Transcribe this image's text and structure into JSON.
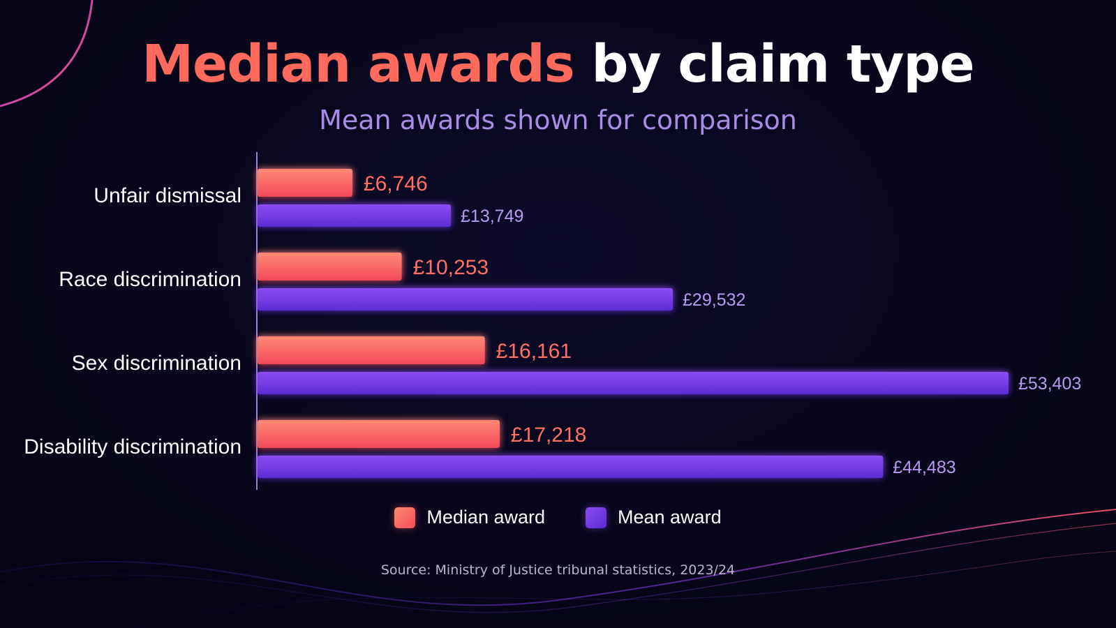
{
  "title": {
    "accent": "Median awards",
    "rest": "by claim type"
  },
  "subtitle": "Mean awards shown for comparison",
  "chart_data": {
    "type": "bar",
    "orientation": "horizontal",
    "categories": [
      "Unfair dismissal",
      "Race discrimination",
      "Sex discrimination",
      "Disability discrimination"
    ],
    "series": [
      {
        "name": "Median award",
        "values": [
          6746,
          10253,
          16161,
          17218
        ],
        "labels": [
          "£6,746",
          "£10,253",
          "£16,161",
          "£17,218"
        ],
        "color": "#ff6a5c"
      },
      {
        "name": "Mean award",
        "values": [
          13749,
          29532,
          53403,
          44483
        ],
        "labels": [
          "£13,749",
          "£29,532",
          "£53,403",
          "£44,483"
        ],
        "color": "#7b3fe4"
      }
    ],
    "xlim": [
      0,
      53403
    ],
    "grid": false,
    "legend": "bottom-center"
  },
  "legend": {
    "median": "Median award",
    "mean": "Mean award"
  },
  "source": "Source: Ministry of Justice tribunal statistics, 2023/24"
}
